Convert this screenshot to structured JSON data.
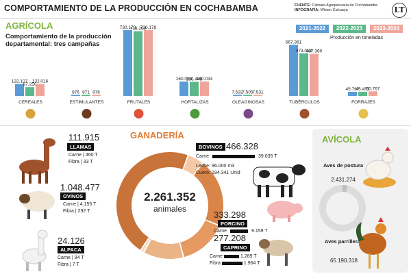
{
  "title": "COMPORTAMIENTO DE LA PRODUCCIÓN EN COCHABAMBA",
  "source_label": "FUENTE:",
  "source_value": "Cámara Agropecuaria de Cochabamba",
  "infografia_label": "INFOGRAFÍA:",
  "infografia_value": "Wilson Cahuaya",
  "logo_text": "LT",
  "agricola": {
    "heading": "AGRÍCOLA",
    "subtitle": "Comportamiento de la producción departamental: tres campañas",
    "unit_note": "Producción en toneladas",
    "legend": [
      {
        "label": "2021-2022",
        "color": "#5b9bd5"
      },
      {
        "label": "2022-2023",
        "color": "#5cb88a"
      },
      {
        "label": "2023-2024",
        "color": "#f0a59a"
      }
    ]
  },
  "chart_data": [
    {
      "type": "bar",
      "title": "",
      "categories": [
        "CEREALES",
        "ESTIMULANTES",
        "FRUTALES",
        "HORTALIZAS",
        "OLEAGINOSAS",
        "TUBÉRCULOS",
        "FORRAJES"
      ],
      "series": [
        {
          "name": "2021-2022",
          "values": [
            132107,
            876,
            730179,
            160033,
            7532,
            567361,
            45767
          ],
          "labels": [
            "132.107",
            "876",
            "730.179",
            "160.033",
            "7.532",
            "567.361",
            "45.767"
          ]
        },
        {
          "name": "2022-2023",
          "values": [
            97250,
            871,
            718253,
            156448,
            7505,
            473013,
            45452
          ],
          "labels": [
            "97.250",
            "871",
            "718.253",
            "156.448",
            "7.505",
            "473.013",
            "45.452"
          ]
        },
        {
          "name": "2023-2024",
          "values": [
            132016,
            876,
            730178,
            160033,
            7531,
            467360,
            50767
          ],
          "labels": [
            "132.016",
            "876",
            "730.178",
            "160.033",
            "7.531",
            "467.360",
            "50.767"
          ]
        }
      ],
      "ylim": [
        0,
        730179
      ]
    },
    {
      "type": "pie",
      "title": "GANADERÍA",
      "center_value": "2.261.352",
      "center_label": "animales",
      "slices": [
        {
          "name": "LLAMAS",
          "value": 111915,
          "color": "#f4c9a8"
        },
        {
          "name": "BOVINOS",
          "value": 466328,
          "color": "#d9854a"
        },
        {
          "name": "PORCINO",
          "value": 333298,
          "color": "#e59a62"
        },
        {
          "name": "CAPRINO",
          "value": 277208,
          "color": "#eab487"
        },
        {
          "name": "ALPACA",
          "value": 24126,
          "color": "#f6d6bd"
        },
        {
          "name": "OVINOS",
          "value": 1048477,
          "color": "#c8733a"
        }
      ]
    },
    {
      "type": "pie",
      "title": "AVÍCOLA",
      "slices": [
        {
          "name": "Aves de postura",
          "value": 2431274,
          "color": "#bfbfbf"
        },
        {
          "name": "Aves parrilleras",
          "value": 65190318,
          "color": "#dcdcdc"
        }
      ]
    }
  ],
  "ganaderia": {
    "heading": "GANADERÍA",
    "llamas": {
      "tag": "LLAMAS",
      "value": "111.915",
      "l1": "Carne",
      "v1": "460 T",
      "l2": "Fibra",
      "v2": "33 T"
    },
    "ovinos": {
      "tag": "OVINOS",
      "value": "1.048.477",
      "l1": "Carne",
      "v1": "4.155 T",
      "l2": "Fibra",
      "v2": "292 T"
    },
    "alpaca": {
      "tag": "ALPACA",
      "value": "24.126",
      "l1": "Carne",
      "v1": "94 T",
      "l2": "Fibra",
      "v2": "7 T"
    },
    "bovinos": {
      "tag": "BOVINOS",
      "value": "466.328",
      "l1": "Carne",
      "v1": "39.035 T",
      "l2": "Leche:",
      "v2": "96.000 m3",
      "l3": "Cuero:",
      "v3": "194.341 Unid"
    },
    "porcino": {
      "tag": "PORCINO",
      "value": "333.298",
      "l1": "Carne",
      "v1": "9.159 T"
    },
    "caprino": {
      "tag": "CAPRINO",
      "value": "277.208",
      "l1": "Carne",
      "v1": "1.289 T",
      "l2": "Fibra",
      "v2": "1.964 T"
    }
  },
  "avicola": {
    "heading": "AVÍCOLA",
    "postura_label": "Aves de postura",
    "postura_value": "2.431.274",
    "parrilleras_label": "Aves parrilleras",
    "parrilleras_value": "65.190.318"
  }
}
